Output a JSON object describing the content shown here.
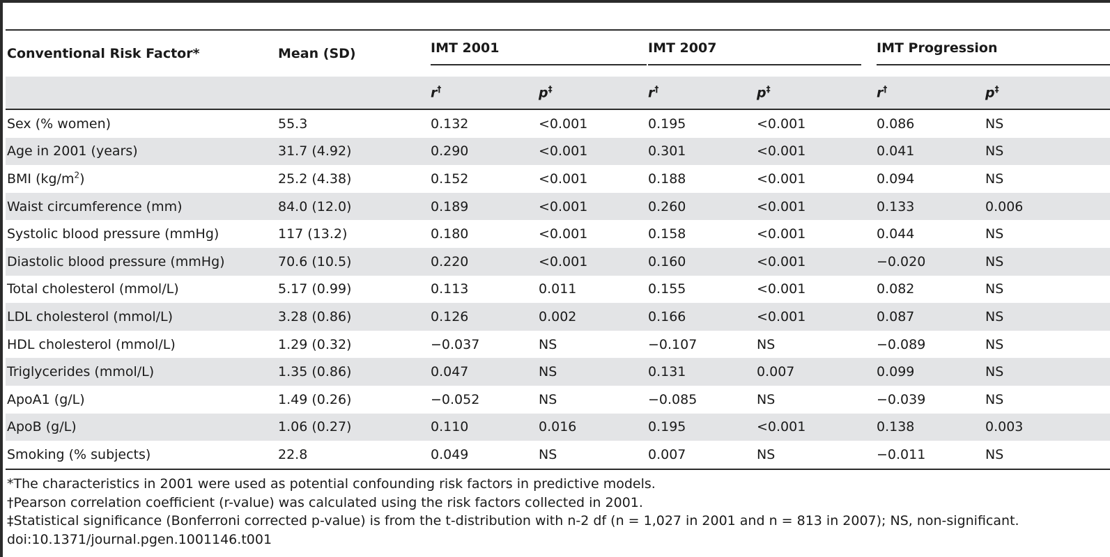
{
  "headers": {
    "risk_factor": "Conventional Risk Factor*",
    "mean_sd": "Mean (SD)",
    "groups": [
      "IMT 2001",
      "IMT 2007",
      "IMT Progression"
    ],
    "r_label": "r",
    "r_mark": "†",
    "p_label": "p",
    "p_mark": "‡"
  },
  "rows": [
    {
      "factor": "Sex (% women)",
      "mean": "55.3",
      "r2001": "0.132",
      "p2001": "<0.001",
      "r2007": "0.195",
      "p2007": "<0.001",
      "rprog": "0.086",
      "pprog": "NS"
    },
    {
      "factor": "Age in 2001 (years)",
      "mean": "31.7 (4.92)",
      "r2001": "0.290",
      "p2001": "<0.001",
      "r2007": "0.301",
      "p2007": "<0.001",
      "rprog": "0.041",
      "pprog": "NS"
    },
    {
      "factor": "BMI (kg/m",
      "factor_sup": "2",
      "factor_suffix": ")",
      "mean": "25.2 (4.38)",
      "r2001": "0.152",
      "p2001": "<0.001",
      "r2007": "0.188",
      "p2007": "<0.001",
      "rprog": "0.094",
      "pprog": "NS"
    },
    {
      "factor": "Waist circumference (mm)",
      "mean": "84.0 (12.0)",
      "r2001": "0.189",
      "p2001": "<0.001",
      "r2007": "0.260",
      "p2007": "<0.001",
      "rprog": "0.133",
      "pprog": "0.006"
    },
    {
      "factor": "Systolic blood pressure (mmHg)",
      "mean": "117 (13.2)",
      "r2001": "0.180",
      "p2001": "<0.001",
      "r2007": "0.158",
      "p2007": "<0.001",
      "rprog": "0.044",
      "pprog": "NS"
    },
    {
      "factor": "Diastolic blood pressure (mmHg)",
      "mean": "70.6 (10.5)",
      "r2001": "0.220",
      "p2001": "<0.001",
      "r2007": "0.160",
      "p2007": "<0.001",
      "rprog": "−0.020",
      "pprog": "NS"
    },
    {
      "factor": "Total cholesterol (mmol/L)",
      "mean": "5.17 (0.99)",
      "r2001": "0.113",
      "p2001": "0.011",
      "r2007": "0.155",
      "p2007": "<0.001",
      "rprog": "0.082",
      "pprog": "NS"
    },
    {
      "factor": "LDL cholesterol (mmol/L)",
      "mean": "3.28 (0.86)",
      "r2001": "0.126",
      "p2001": "0.002",
      "r2007": "0.166",
      "p2007": "<0.001",
      "rprog": "0.087",
      "pprog": "NS"
    },
    {
      "factor": "HDL cholesterol (mmol/L)",
      "mean": "1.29 (0.32)",
      "r2001": "−0.037",
      "p2001": "NS",
      "r2007": "−0.107",
      "p2007": "NS",
      "rprog": "−0.089",
      "pprog": "NS"
    },
    {
      "factor": "Triglycerides (mmol/L)",
      "mean": "1.35 (0.86)",
      "r2001": "0.047",
      "p2001": "NS",
      "r2007": "0.131",
      "p2007": "0.007",
      "rprog": "0.099",
      "pprog": "NS"
    },
    {
      "factor": "ApoA1 (g/L)",
      "mean": "1.49 (0.26)",
      "r2001": "−0.052",
      "p2001": "NS",
      "r2007": "−0.085",
      "p2007": "NS",
      "rprog": "−0.039",
      "pprog": "NS"
    },
    {
      "factor": "ApoB (g/L)",
      "mean": "1.06 (0.27)",
      "r2001": "0.110",
      "p2001": "0.016",
      "r2007": "0.195",
      "p2007": "<0.001",
      "rprog": "0.138",
      "pprog": "0.003"
    },
    {
      "factor": "Smoking (% subjects)",
      "mean": "22.8",
      "r2001": "0.049",
      "p2001": "NS",
      "r2007": "0.007",
      "p2007": "NS",
      "rprog": "−0.011",
      "pprog": "NS"
    }
  ],
  "footnotes": [
    "*The characteristics in 2001 were used as potential confounding risk factors in predictive models.",
    "†Pearson correlation coefficient (r-value) was calculated using the risk factors collected in 2001.",
    "‡Statistical significance (Bonferroni corrected p-value) is from the t-distribution with n-2 df (n = 1,027 in 2001 and n = 813 in 2007); NS, non-significant.",
    "doi:10.1371/journal.pgen.1001146.t001"
  ],
  "colors": {
    "rule": "#2b2b2b",
    "shade": "#e3e4e6",
    "text": "#1a1a1a"
  }
}
